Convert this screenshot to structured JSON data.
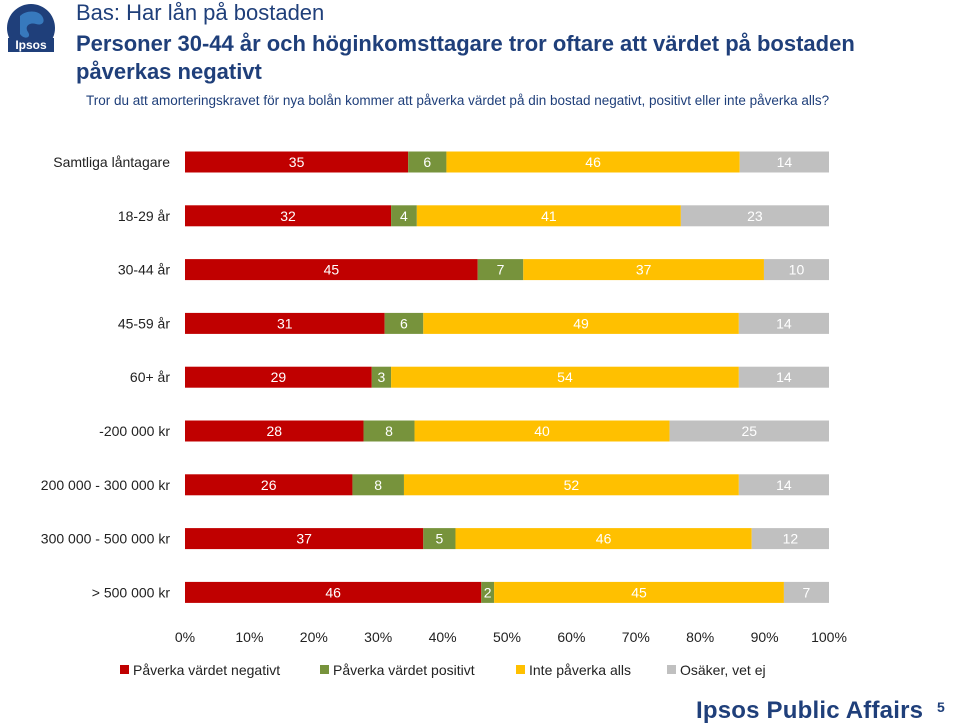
{
  "header": {
    "logo_text": "Ipsos",
    "base_title": "Bas: Har lån på bostaden",
    "main_title": "Personer 30-44 år och höginkomsttagare tror oftare att värdet på bostaden påverkas negativt",
    "question": "Tror du att amorteringskravet för nya bolån kommer att påverka värdet på din bostad negativt, positivt eller inte påverka alls?"
  },
  "footer": {
    "brand": "Ipsos Public Affairs",
    "page_number": "5"
  },
  "colors": {
    "negative": "#c00000",
    "positive": "#77933c",
    "no_effect": "#ffc000",
    "unsure": "#c0c0c0"
  },
  "chart_data": {
    "type": "bar",
    "orientation": "horizontal",
    "stacked": true,
    "normalized": true,
    "categories": [
      "Samtliga låntagare",
      "18-29 år",
      "30-44 år",
      "45-59 år",
      "60+ år",
      "-200 000 kr",
      "200 000 - 300 000 kr",
      "300 000 - 500 000 kr",
      "> 500 000 kr"
    ],
    "series": [
      {
        "name": "Påverka värdet negativt",
        "color": "#c00000",
        "label_color": "#ffffff",
        "values": [
          35,
          32,
          45,
          31,
          29,
          28,
          26,
          37,
          46
        ]
      },
      {
        "name": "Påverka värdet positivt",
        "color": "#77933c",
        "label_color": "#ffffff",
        "values": [
          6,
          4,
          7,
          6,
          3,
          8,
          8,
          5,
          2
        ]
      },
      {
        "name": "Inte påverka alls",
        "color": "#ffc000",
        "label_color": "#ffffff",
        "values": [
          46,
          41,
          37,
          49,
          54,
          40,
          52,
          46,
          45
        ]
      },
      {
        "name": "Osäker, vet ej",
        "color": "#c0c0c0",
        "label_color": "#ffffff",
        "values": [
          14,
          23,
          10,
          14,
          14,
          25,
          14,
          12,
          7
        ]
      }
    ],
    "xlim": [
      0,
      100
    ],
    "x_ticks": [
      "0%",
      "10%",
      "20%",
      "30%",
      "40%",
      "50%",
      "60%",
      "70%",
      "80%",
      "90%",
      "100%"
    ],
    "legend_position": "bottom",
    "grid": false
  }
}
